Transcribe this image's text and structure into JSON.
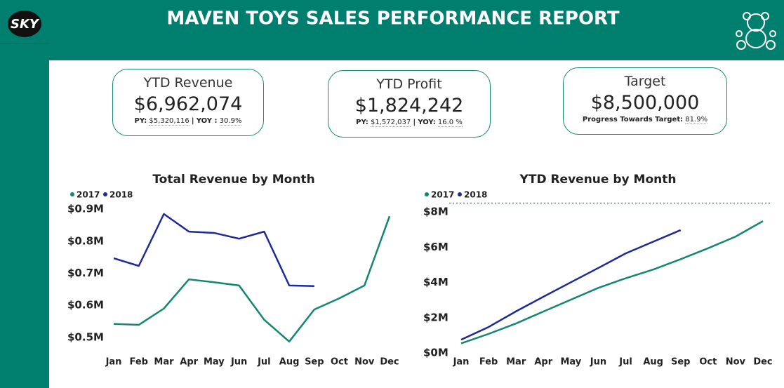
{
  "header": {
    "logo": "SKY",
    "title": "MAVEN TOYS SALES PERFORMANCE REPORT"
  },
  "cards": [
    {
      "title": "YTD Revenue",
      "value": "$6,962,074",
      "note": [
        {
          "text": "PY:",
          "bold": true
        },
        {
          "text": "$5,320,116",
          "bold": false
        },
        {
          "text": "|",
          "bold": true
        },
        {
          "text": "YOY :",
          "bold": true
        },
        {
          "text": "30.9%",
          "bold": false
        }
      ]
    },
    {
      "title": "YTD Profit",
      "value": "$1,824,242",
      "note": [
        {
          "text": "PY:",
          "bold": true
        },
        {
          "text": "$1,572,037",
          "bold": false
        },
        {
          "text": "|",
          "bold": true
        },
        {
          "text": "YOY:",
          "bold": true
        },
        {
          "text": "16.0 %",
          "bold": false
        }
      ]
    },
    {
      "title": "Target",
      "value": "$8,500,000",
      "note": [
        {
          "text": "Progress Towards Target:",
          "bold": true
        },
        {
          "text": "81.9%",
          "bold": false
        }
      ]
    }
  ],
  "chart_data": [
    {
      "type": "line",
      "title": "Total Revenue by Month",
      "categories": [
        "Jan",
        "Feb",
        "Mar",
        "Apr",
        "May",
        "Jun",
        "Jul",
        "Aug",
        "Sep",
        "Oct",
        "Nov",
        "Dec"
      ],
      "series": [
        {
          "name": "2017",
          "color": "#13876f",
          "values": [
            542000,
            539000,
            590000,
            681000,
            672000,
            662000,
            555000,
            487000,
            587000,
            622000,
            662000,
            878000
          ]
        },
        {
          "name": "2018",
          "color": "#1c2a99",
          "values": [
            747000,
            723000,
            885000,
            830000,
            826000,
            808000,
            830000,
            662000,
            660000,
            null,
            null,
            null
          ]
        }
      ],
      "ylim": [
        480000,
        920000
      ],
      "yticks": [
        {
          "value": 500000,
          "label": "$0.5M"
        },
        {
          "value": 600000,
          "label": "$0.6M"
        },
        {
          "value": 700000,
          "label": "$0.7M"
        },
        {
          "value": 800000,
          "label": "$0.8M"
        },
        {
          "value": 900000,
          "label": "$0.9M"
        }
      ],
      "grid": false
    },
    {
      "type": "line",
      "title": "YTD Revenue by Month",
      "categories": [
        "Jan",
        "Feb",
        "Mar",
        "Apr",
        "May",
        "Jun",
        "Jul",
        "Aug",
        "Sep",
        "Oct",
        "Nov",
        "Dec"
      ],
      "series": [
        {
          "name": "2017",
          "color": "#13876f",
          "values": [
            540000,
            1080000,
            1670000,
            2350000,
            3020000,
            3690000,
            4240000,
            4730000,
            5320000,
            5940000,
            6600000,
            7480000
          ]
        },
        {
          "name": "2018",
          "color": "#1c2a99",
          "values": [
            750000,
            1470000,
            2360000,
            3190000,
            4010000,
            4820000,
            5650000,
            6310000,
            6970000,
            null,
            null,
            null
          ]
        }
      ],
      "target": 8500000,
      "ylim": [
        0,
        8800000
      ],
      "yticks": [
        {
          "value": 0,
          "label": "$0M"
        },
        {
          "value": 2000000,
          "label": "$2M"
        },
        {
          "value": 4000000,
          "label": "$4M"
        },
        {
          "value": 6000000,
          "label": "$6M"
        },
        {
          "value": 8000000,
          "label": "$8M"
        }
      ],
      "grid": false
    }
  ]
}
